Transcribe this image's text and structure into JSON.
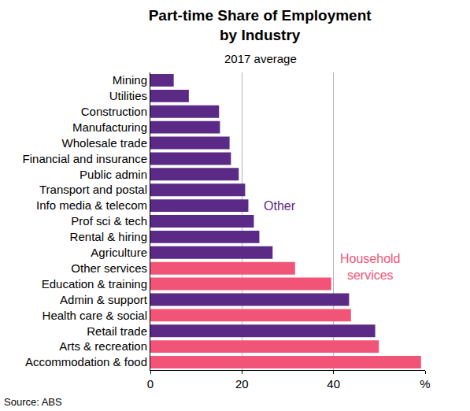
{
  "chart_data": {
    "type": "bar",
    "orientation": "horizontal",
    "title": "Part-time Share of Employment by Industry",
    "subtitle": "2017 average",
    "source": "Source: ABS",
    "categories": [
      "Mining",
      "Utilities",
      "Construction",
      "Manufacturing",
      "Wholesale trade",
      "Financial and insurance",
      "Public admin",
      "Transport and postal",
      "Info media & telecom",
      "Prof sci & tech",
      "Rental & hiring",
      "Agriculture",
      "Other services",
      "Education & training",
      "Admin & support",
      "Health care & social",
      "Retail trade",
      "Arts & recreation",
      "Accommodation & food"
    ],
    "series": [
      {
        "name": "Other",
        "color": "#5b2a86",
        "values": [
          5.1,
          8.4,
          15.0,
          15.2,
          17.3,
          17.6,
          19.3,
          20.7,
          21.4,
          22.6,
          23.8,
          26.7,
          null,
          null,
          43.4,
          null,
          49.1,
          null,
          null
        ]
      },
      {
        "name": "Household services",
        "color": "#f25477",
        "values": [
          null,
          null,
          null,
          null,
          null,
          null,
          null,
          null,
          null,
          null,
          null,
          null,
          31.6,
          39.5,
          null,
          43.8,
          null,
          49.9,
          59.1
        ]
      }
    ],
    "xlim": [
      0,
      60
    ],
    "xticks": [
      0,
      20,
      40,
      {
        "value": 60,
        "label": "%"
      }
    ],
    "grid": true
  }
}
